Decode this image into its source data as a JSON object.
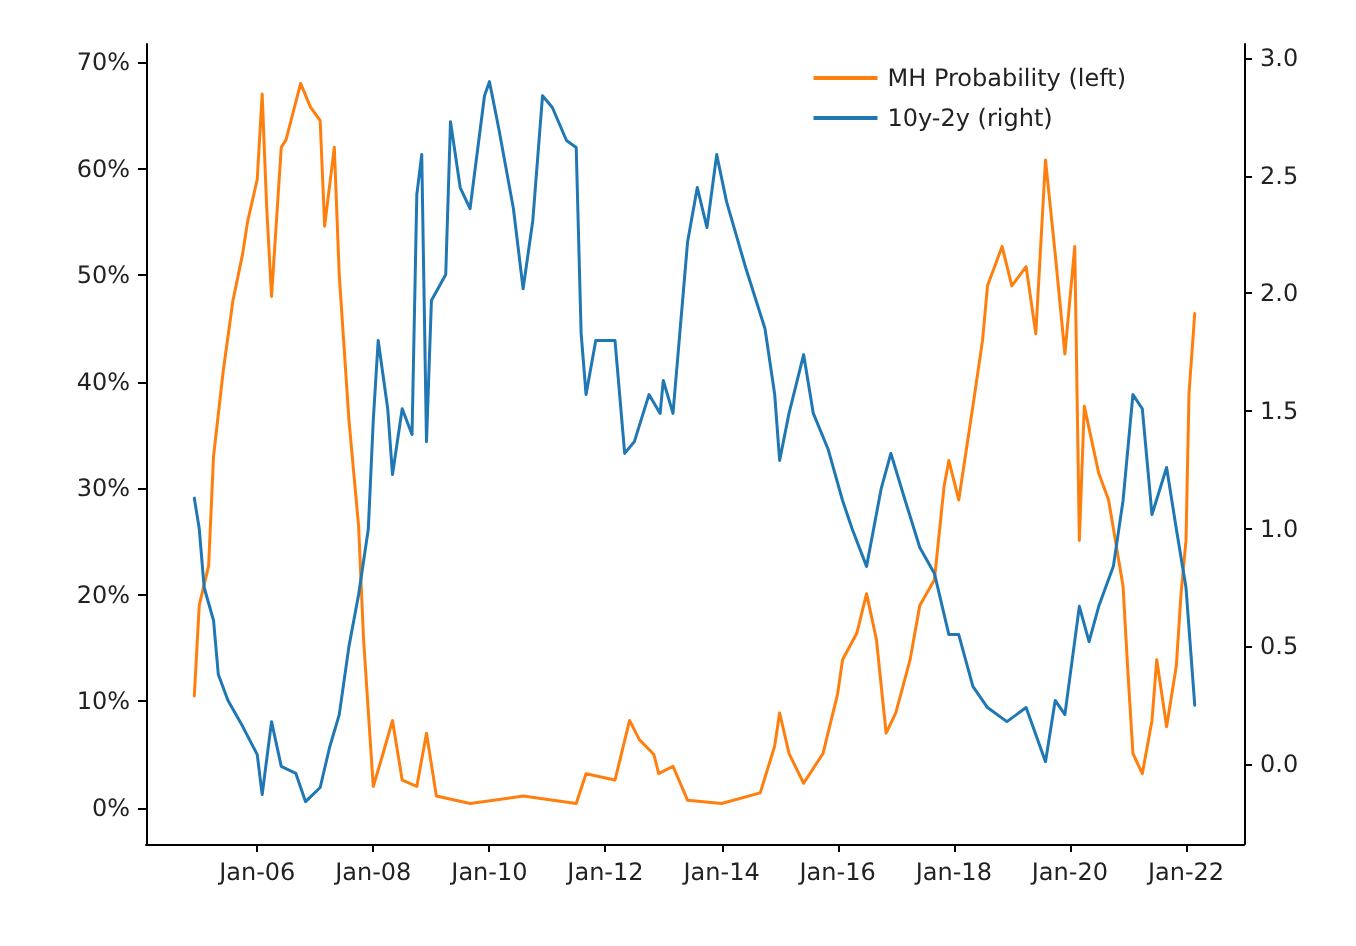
{
  "chart_data": {
    "type": "line",
    "xlim": [
      "2004-02",
      "2023-01"
    ],
    "xticks": [
      {
        "value": "2006-01",
        "label": "Jan-06"
      },
      {
        "value": "2008-01",
        "label": "Jan-08"
      },
      {
        "value": "2010-01",
        "label": "Jan-10"
      },
      {
        "value": "2012-01",
        "label": "Jan-12"
      },
      {
        "value": "2014-01",
        "label": "Jan-14"
      },
      {
        "value": "2016-01",
        "label": "Jan-16"
      },
      {
        "value": "2018-01",
        "label": "Jan-18"
      },
      {
        "value": "2020-01",
        "label": "Jan-20"
      },
      {
        "value": "2022-01",
        "label": "Jan-22"
      }
    ],
    "ylim": [
      -3.4,
      71.7
    ],
    "yticks": [
      {
        "value": 0,
        "label": "0%"
      },
      {
        "value": 10,
        "label": "10%"
      },
      {
        "value": 20,
        "label": "20%"
      },
      {
        "value": 30,
        "label": "30%"
      },
      {
        "value": 40,
        "label": "40%"
      },
      {
        "value": 50,
        "label": "50%"
      },
      {
        "value": 60,
        "label": "60%"
      },
      {
        "value": 70,
        "label": "70%"
      }
    ],
    "y2lim": [
      -0.34,
      3.06
    ],
    "y2ticks": [
      {
        "value": 0,
        "label": "0.0"
      },
      {
        "value": 0.5,
        "label": "0.5"
      },
      {
        "value": 1,
        "label": "1.0"
      },
      {
        "value": 1.5,
        "label": "1.5"
      },
      {
        "value": 2,
        "label": "2.0"
      },
      {
        "value": 2.5,
        "label": "2.5"
      },
      {
        "value": 3,
        "label": "3.0"
      }
    ],
    "grid": false,
    "legend": "top right",
    "marker": "none",
    "line_style": "solid",
    "series": [
      {
        "name": "MH Probability (left)",
        "color": "#ff7f0e",
        "x": [
          "2004-12",
          "2005-01",
          "2005-03",
          "2005-04",
          "2005-06",
          "2005-08",
          "2005-10",
          "2005-11",
          "2006-01",
          "2006-02",
          "2006-03",
          "2006-04",
          "2006-06",
          "2006-07",
          "2006-10",
          "2006-12",
          "2007-02",
          "2007-03",
          "2007-05",
          "2007-06",
          "2007-08",
          "2007-10",
          "2007-11",
          "2008-01",
          "2008-03",
          "2008-05",
          "2008-07",
          "2008-10",
          "2008-12",
          "2009-02",
          "2009-09",
          "2010-08",
          "2011-07",
          "2011-09",
          "2012-03",
          "2012-06",
          "2012-08",
          "2012-11",
          "2012-12",
          "2013-03",
          "2013-06",
          "2014-01",
          "2014-09",
          "2014-12",
          "2015-01",
          "2015-03",
          "2015-06",
          "2015-10",
          "2016-01",
          "2016-02",
          "2016-05",
          "2016-07",
          "2016-09",
          "2016-11",
          "2017-01",
          "2017-04",
          "2017-06",
          "2017-09",
          "2017-11",
          "2017-12",
          "2018-02",
          "2018-05",
          "2018-07",
          "2018-08",
          "2018-11",
          "2019-01",
          "2019-04",
          "2019-06",
          "2019-08",
          "2019-10",
          "2019-12",
          "2020-02",
          "2020-03",
          "2020-04",
          "2020-07",
          "2020-09",
          "2020-12",
          "2021-01",
          "2021-02",
          "2021-04",
          "2021-06",
          "2021-07",
          "2021-09",
          "2021-11",
          "2021-12",
          "2022-01-01",
          "2022-01-20",
          "2022-02-25"
        ],
        "values": [
          10.5,
          19,
          22.7,
          33,
          41,
          47.6,
          52,
          55,
          59,
          67,
          56.5,
          48,
          62,
          62.7,
          68,
          65.8,
          64.5,
          54.6,
          62,
          50,
          36.4,
          26.4,
          15.8,
          2,
          5,
          8.2,
          2.6,
          2,
          7,
          1.1,
          0.4,
          1.1,
          0.4,
          3.2,
          2.6,
          8.2,
          6.4,
          5,
          3.2,
          3.9,
          0.7,
          0.4,
          1.4,
          5.8,
          8.9,
          5.1,
          2.3,
          5.1,
          10.7,
          13.9,
          16.4,
          20.1,
          15.8,
          7,
          8.9,
          13.9,
          19,
          21.4,
          30.2,
          32.6,
          28.9,
          37.7,
          43.9,
          49,
          52.7,
          49,
          50.8,
          44.5,
          60.8,
          52,
          42.6,
          52.7,
          25.1,
          37.7,
          31.4,
          28.9,
          20.8,
          12.6,
          5.1,
          3.2,
          8.2,
          13.9,
          7.6,
          13.3,
          20.1,
          25.1,
          38.9,
          46.4
        ]
      },
      {
        "name": "10y-2y (right)",
        "color": "#1f77b4",
        "axis": "y2",
        "x": [
          "2004-12",
          "2005-01",
          "2005-02",
          "2005-04",
          "2005-05",
          "2005-07",
          "2005-10",
          "2006-01",
          "2006-02",
          "2006-04",
          "2006-06",
          "2006-09",
          "2006-11",
          "2007-02",
          "2007-04",
          "2007-06",
          "2007-08",
          "2007-10",
          "2007-12",
          "2008-01",
          "2008-02",
          "2008-04",
          "2008-05",
          "2008-07",
          "2008-09",
          "2008-10",
          "2008-11",
          "2008-12",
          "2009-01",
          "2009-04",
          "2009-05",
          "2009-07",
          "2009-09",
          "2009-12",
          "2010-01",
          "2010-03",
          "2010-06",
          "2010-08",
          "2010-10",
          "2010-12",
          "2011-02",
          "2011-05",
          "2011-07",
          "2011-08",
          "2011-09",
          "2011-11",
          "2012-03",
          "2012-05",
          "2012-07",
          "2012-10",
          "2012-12-10",
          "2012-12-30",
          "2013-03",
          "2013-06",
          "2013-08",
          "2013-10",
          "2013-12",
          "2014-02",
          "2014-06",
          "2014-10",
          "2014-12",
          "2015-01",
          "2015-03",
          "2015-06",
          "2015-08",
          "2015-11",
          "2016-02",
          "2016-04",
          "2016-07",
          "2016-10",
          "2016-12",
          "2017-03",
          "2017-06",
          "2017-09",
          "2017-12",
          "2018-02",
          "2018-05",
          "2018-08",
          "2018-12",
          "2019-04",
          "2019-08",
          "2019-10",
          "2019-12",
          "2020-03",
          "2020-05",
          "2020-07",
          "2020-10",
          "2020-12",
          "2021-02",
          "2021-04",
          "2021-06",
          "2021-09",
          "2021-11",
          "2022-01",
          "2022-02-25"
        ],
        "values": [
          1.13,
          1.0,
          0.75,
          0.61,
          0.38,
          0.27,
          0.16,
          0.04,
          -0.13,
          0.18,
          -0.01,
          -0.04,
          -0.16,
          -0.1,
          0.07,
          0.21,
          0.5,
          0.72,
          1.0,
          1.46,
          1.8,
          1.51,
          1.23,
          1.51,
          1.4,
          2.42,
          2.59,
          1.37,
          1.97,
          2.08,
          2.73,
          2.45,
          2.36,
          2.84,
          2.9,
          2.7,
          2.36,
          2.02,
          2.31,
          2.84,
          2.79,
          2.65,
          2.62,
          1.83,
          1.57,
          1.8,
          1.8,
          1.32,
          1.37,
          1.57,
          1.49,
          1.63,
          1.49,
          2.22,
          2.45,
          2.28,
          2.59,
          2.39,
          2.11,
          1.85,
          1.57,
          1.29,
          1.49,
          1.74,
          1.49,
          1.34,
          1.12,
          1.0,
          0.84,
          1.17,
          1.32,
          1.12,
          0.92,
          0.81,
          0.55,
          0.55,
          0.33,
          0.24,
          0.18,
          0.24,
          0.01,
          0.27,
          0.21,
          0.67,
          0.52,
          0.67,
          0.84,
          1.12,
          1.57,
          1.51,
          1.06,
          1.26,
          1.0,
          0.75,
          0.25
        ]
      }
    ]
  }
}
